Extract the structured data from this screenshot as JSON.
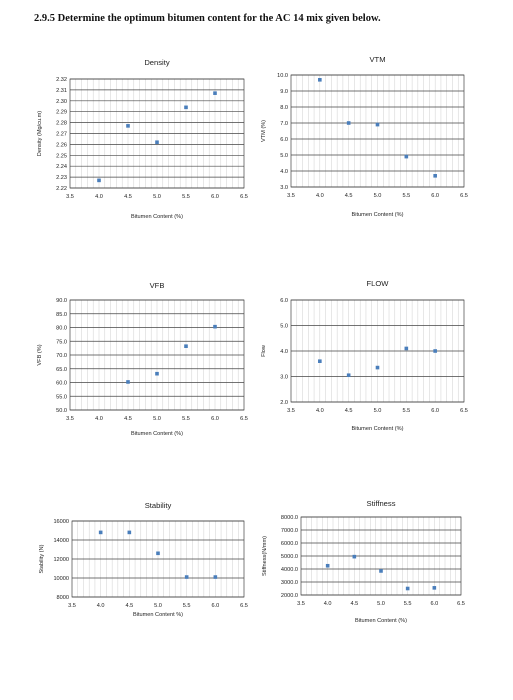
{
  "heading": "2.9.5 Determine the optimum bitumen content for the AC 14 mix given below.",
  "chart_data": [
    {
      "type": "scatter",
      "title": "Density",
      "xlabel": "Bitumen Content (%)",
      "ylabel": "Density (Mg/cu.m)",
      "xlim": [
        3.5,
        6.5
      ],
      "ylim": [
        2.22,
        2.32
      ],
      "x_ticks": [
        "3.5",
        "4.0",
        "4.5",
        "5.0",
        "5.5",
        "6.0",
        "6.5"
      ],
      "y_ticks": [
        "2.22",
        "2.23",
        "2.24",
        "2.25",
        "2.26",
        "2.27",
        "2.28",
        "2.29",
        "2.30",
        "2.31",
        "2.32"
      ],
      "x": [
        4.0,
        4.5,
        5.0,
        5.5,
        6.0
      ],
      "y": [
        2.227,
        2.277,
        2.262,
        2.294,
        2.307
      ],
      "grid": true,
      "color": "#4a7ebb"
    },
    {
      "type": "scatter",
      "title": "VTM",
      "xlabel": "Bitumen Content (%)",
      "ylabel": "VTM (%)",
      "xlim": [
        3.5,
        6.5
      ],
      "ylim": [
        3.0,
        10.0
      ],
      "x_ticks": [
        "3.5",
        "4.0",
        "4.5",
        "5.0",
        "5.5",
        "6.0",
        "6.5"
      ],
      "y_ticks": [
        "3.0",
        "4.0",
        "5.0",
        "6.0",
        "7.0",
        "8.0",
        "9.0",
        "10.0"
      ],
      "x": [
        4.0,
        4.5,
        5.0,
        5.5,
        6.0
      ],
      "y": [
        9.7,
        7.0,
        6.9,
        4.9,
        3.7
      ],
      "grid": true,
      "color": "#4a7ebb"
    },
    {
      "type": "scatter",
      "title": "VFB",
      "xlabel": "Bitumen Content (%)",
      "ylabel": "VFB (%)",
      "xlim": [
        3.5,
        6.5
      ],
      "ylim": [
        50.0,
        90.0
      ],
      "x_ticks": [
        "3.5",
        "4.0",
        "4.5",
        "5.0",
        "5.5",
        "6.0",
        "6.5"
      ],
      "y_ticks": [
        "50.0",
        "55.0",
        "60.0",
        "65.0",
        "70.0",
        "75.0",
        "80.0",
        "85.0",
        "90.0"
      ],
      "x": [
        4.5,
        5.0,
        5.5,
        6.0
      ],
      "y": [
        60.2,
        63.2,
        73.2,
        80.3
      ],
      "grid": true,
      "color": "#4a7ebb"
    },
    {
      "type": "scatter",
      "title": "FLOW",
      "xlabel": "Bitumen Content (%)",
      "ylabel": "Flow",
      "xlim": [
        3.5,
        6.5
      ],
      "ylim": [
        2.0,
        6.0
      ],
      "x_ticks": [
        "3.5",
        "4.0",
        "4.5",
        "5.0",
        "5.5",
        "6.0",
        "6.5"
      ],
      "y_ticks": [
        "2.0",
        "3.0",
        "4.0",
        "5.0",
        "6.0"
      ],
      "x": [
        4.0,
        4.5,
        5.0,
        5.5,
        6.0
      ],
      "y": [
        3.6,
        3.05,
        3.35,
        4.1,
        4.0
      ],
      "grid": true,
      "color": "#4a7ebb"
    },
    {
      "type": "scatter",
      "title": "Stability",
      "xlabel": "Bitumen Content %)",
      "ylabel": "Stability (N)",
      "xlim": [
        3.5,
        6.5
      ],
      "ylim": [
        8000,
        16000
      ],
      "x_ticks": [
        "3.5",
        "4.0",
        "4.5",
        "5.0",
        "5.5",
        "6.0",
        "6.5"
      ],
      "y_ticks": [
        "8000",
        "10000",
        "12000",
        "14000",
        "16000"
      ],
      "x": [
        4.0,
        4.5,
        5.0,
        5.5,
        6.0
      ],
      "y": [
        14800,
        14800,
        12600,
        10100,
        10100
      ],
      "grid": true,
      "color": "#4a7ebb"
    },
    {
      "type": "scatter",
      "title": "Stiffness",
      "xlabel": "Bitumen Content (%)",
      "ylabel": "Stiffness(N/mm)",
      "xlim": [
        3.5,
        6.5
      ],
      "ylim": [
        2000,
        8000
      ],
      "x_ticks": [
        "3.5",
        "4.0",
        "4.5",
        "5.0",
        "5.5",
        "6.0",
        "6.5"
      ],
      "y_ticks": [
        "2000.0",
        "3000.0",
        "4000.0",
        "5000.0",
        "6000.0",
        "7000.0",
        "8000.0"
      ],
      "x": [
        4.0,
        4.5,
        5.0,
        5.5,
        6.0
      ],
      "y": [
        4250,
        4950,
        3850,
        2500,
        2550
      ],
      "grid": true,
      "color": "#4a7ebb"
    }
  ]
}
